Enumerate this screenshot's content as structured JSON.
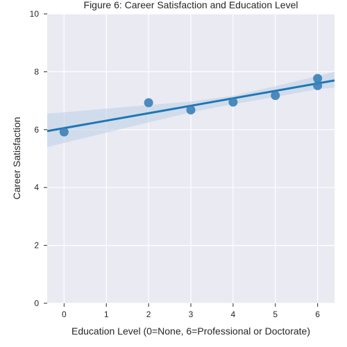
{
  "chart_data": {
    "type": "scatter",
    "title": "Figure 6: Career Satisfaction and Education Level",
    "xlabel": "Education Level (0=None, 6=Professional or Doctorate)",
    "ylabel": "Career Satisfaction",
    "xlim": [
      -0.4,
      6.4
    ],
    "ylim": [
      0,
      10
    ],
    "xticks": [
      "0",
      "1",
      "2",
      "3",
      "4",
      "5",
      "6"
    ],
    "yticks": [
      "0",
      "2",
      "4",
      "6",
      "8",
      "10"
    ],
    "grid": true,
    "points": [
      {
        "x": 0,
        "y": 5.92
      },
      {
        "x": 2,
        "y": 6.93
      },
      {
        "x": 3,
        "y": 6.68
      },
      {
        "x": 4,
        "y": 6.95
      },
      {
        "x": 5,
        "y": 7.18
      },
      {
        "x": 6,
        "y": 7.52
      },
      {
        "x": 6,
        "y": 7.77
      }
    ],
    "regression": {
      "line": [
        [
          -0.4,
          5.95
        ],
        [
          6.4,
          7.7
        ]
      ],
      "ci_upper": [
        [
          -0.4,
          6.55
        ],
        [
          2,
          6.85
        ],
        [
          3,
          6.97
        ],
        [
          4,
          7.17
        ],
        [
          5,
          7.5
        ],
        [
          6,
          7.85
        ],
        [
          6.4,
          8.0
        ]
      ],
      "ci_lower": [
        [
          -0.4,
          5.4
        ],
        [
          2,
          6.25
        ],
        [
          3,
          6.6
        ],
        [
          4,
          6.88
        ],
        [
          5,
          7.13
        ],
        [
          6,
          7.4
        ],
        [
          6.4,
          7.45
        ]
      ]
    },
    "colors": {
      "background": "#eaeaf2",
      "grid": "#ffffff",
      "points": "#3a7fb8",
      "line": "#1f77b4",
      "band": "#b9cfe6"
    }
  }
}
